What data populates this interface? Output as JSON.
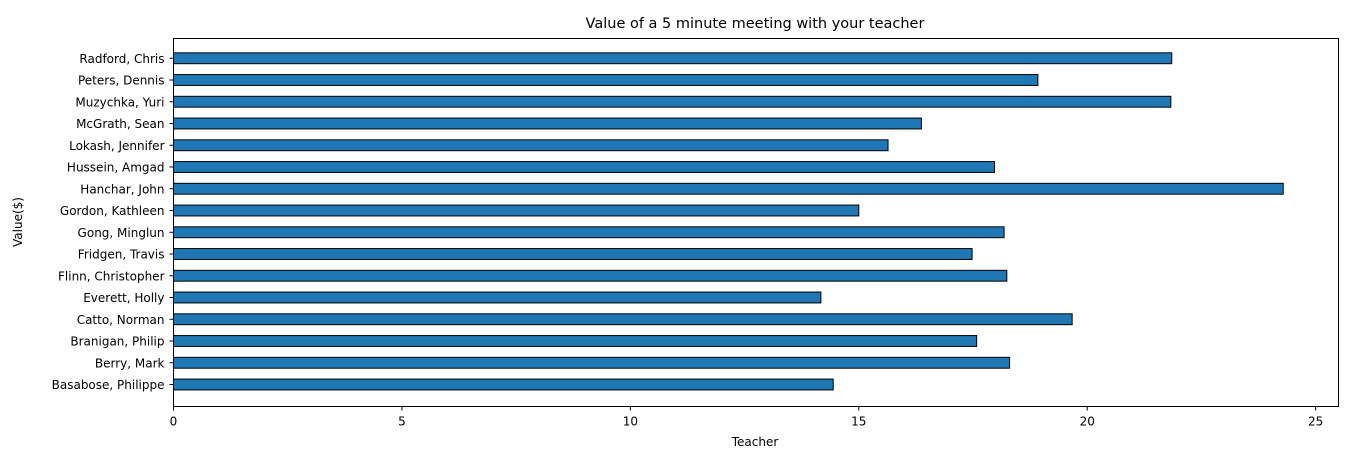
{
  "chart_data": {
    "type": "bar",
    "orientation": "horizontal",
    "title": "Value of a 5 minute meeting with your teacher",
    "xlabel": "Teacher",
    "ylabel": "Value($)",
    "categories": [
      "Basabose, Philippe",
      "Berry, Mark",
      "Branigan, Philip",
      "Catto, Norman",
      "Everett, Holly",
      "Flinn, Christopher",
      "Fridgen, Travis",
      "Gong, Minglun",
      "Gordon, Kathleen",
      "Hanchar, John",
      "Hussein, Amgad",
      "Lokash, Jennifer",
      "McGrath, Sean",
      "Muzychka, Yuri",
      "Peters, Dennis",
      "Radford, Chris"
    ],
    "values": [
      14.44,
      18.3,
      17.58,
      19.67,
      14.17,
      18.24,
      17.48,
      18.18,
      15.0,
      24.29,
      17.97,
      15.64,
      16.37,
      21.83,
      18.92,
      21.85
    ],
    "xlim": [
      0,
      25.5
    ],
    "xticks": [
      0,
      5,
      10,
      15,
      20,
      25
    ],
    "grid": false,
    "bar_color": "#1f77b4",
    "bar_edge_color": "#000000"
  }
}
